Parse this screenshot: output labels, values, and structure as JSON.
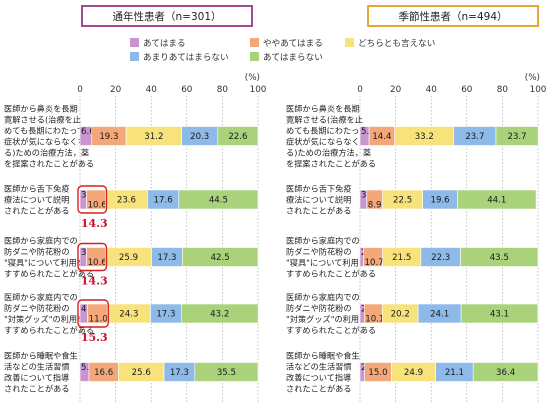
{
  "colors": {
    "atehamaru": "#c995cf",
    "yaya_atehamaru": "#f4a778",
    "dochiratomo": "#f7e27b",
    "amari": "#8dbae8",
    "atehamaranai": "#a9d27a",
    "frame_left": "#a64a8f",
    "frame_right": "#e2a83a",
    "highlight": "#d42020"
  },
  "legend": [
    {
      "label": "あてはまる",
      "key": "atehamaru"
    },
    {
      "label": "ややあてはまる",
      "key": "yaya_atehamaru"
    },
    {
      "label": "どちらとも言えない",
      "key": "dochiratomo"
    },
    {
      "label": "あまりあてはまらない",
      "key": "amari"
    },
    {
      "label": "あてはまらない",
      "key": "atehamaranai"
    }
  ],
  "chart_data": [
    {
      "type": "bar",
      "orientation": "horizontal-stacked",
      "title": "通年性患者（n=301）",
      "xlim": [
        0,
        100
      ],
      "ticks": [
        "0",
        "20",
        "40",
        "60",
        "80",
        "100"
      ],
      "unit": "(%)",
      "categories": [
        [
          "医師から鼻炎を長期",
          "寛解させる(治療を止",
          "めても長期にわたって",
          "症状が気にならなくな",
          "る)ための治療方法，薬",
          "を提案されたことがある"
        ],
        [
          "医師から舌下免疫",
          "療法について説明",
          "されたことがある"
        ],
        [
          "医師から家庭内での",
          "防ダニや防花粉の",
          "\"寝具\"について利用を",
          "すすめられたことがある"
        ],
        [
          "医師から家庭内での",
          "防ダニや防花粉の",
          "\"対策グッズ\"の利用を",
          "すすめられたことがある"
        ],
        [
          "医師から睡眠や食生",
          "活などの生活習慣",
          "改善について指導",
          "されたことがある"
        ]
      ],
      "series": [
        {
          "name": "あてはまる",
          "values": [
            6.6,
            3.7,
            3.7,
            4.3,
            5.0
          ]
        },
        {
          "name": "ややあてはまる",
          "values": [
            19.3,
            10.6,
            10.6,
            11.0,
            16.6
          ]
        },
        {
          "name": "どちらとも言えない",
          "values": [
            31.2,
            23.6,
            25.9,
            24.3,
            25.6
          ]
        },
        {
          "name": "あまりあてはまらない",
          "values": [
            20.3,
            17.6,
            17.3,
            17.3,
            17.3
          ]
        },
        {
          "name": "あてはまらない",
          "values": [
            22.6,
            44.5,
            42.5,
            43.2,
            35.5
          ]
        }
      ],
      "annotations": [
        "",
        "14.3",
        "14.3",
        "15.3",
        ""
      ]
    },
    {
      "type": "bar",
      "orientation": "horizontal-stacked",
      "title": "季節性患者（n=494）",
      "xlim": [
        0,
        100
      ],
      "ticks": [
        "0",
        "20",
        "40",
        "60",
        "80",
        "100"
      ],
      "unit": "(%)",
      "categories": [
        [
          "医師から鼻炎を長期",
          "寛解させる(治療を止",
          "めても長期にわたって",
          "症状が気にならなくな",
          "る)ための治療方法，薬",
          "を提案されたことがある"
        ],
        [
          "医師から舌下免疫",
          "療法について説明",
          "されたことがある"
        ],
        [
          "医師から家庭内での",
          "防ダニや防花粉の",
          "\"寝具\"について利用を",
          "すすめられたことがある"
        ],
        [
          "医師から家庭内での",
          "防ダニや防花粉の",
          "\"対策グッズ\"の利用を",
          "すすめられたことがある"
        ],
        [
          "医師から睡眠や食生",
          "活などの生活習慣",
          "改善について指導",
          "されたことがある"
        ]
      ],
      "series": [
        {
          "name": "あてはまる",
          "values": [
            5.1,
            3.8,
            2.0,
            2.4,
            2.6
          ]
        },
        {
          "name": "ややあてはまる",
          "values": [
            14.4,
            8.9,
            10.7,
            10.1,
            15.0
          ]
        },
        {
          "name": "どちらとも言えない",
          "values": [
            33.2,
            22.5,
            21.5,
            20.2,
            24.9
          ]
        },
        {
          "name": "あまりあてはまらない",
          "values": [
            23.7,
            19.6,
            22.3,
            24.1,
            21.1
          ]
        },
        {
          "name": "あてはまらない",
          "values": [
            23.7,
            44.1,
            43.5,
            43.1,
            36.4
          ]
        }
      ],
      "annotations": [
        "",
        "",
        "",
        "",
        ""
      ]
    }
  ]
}
